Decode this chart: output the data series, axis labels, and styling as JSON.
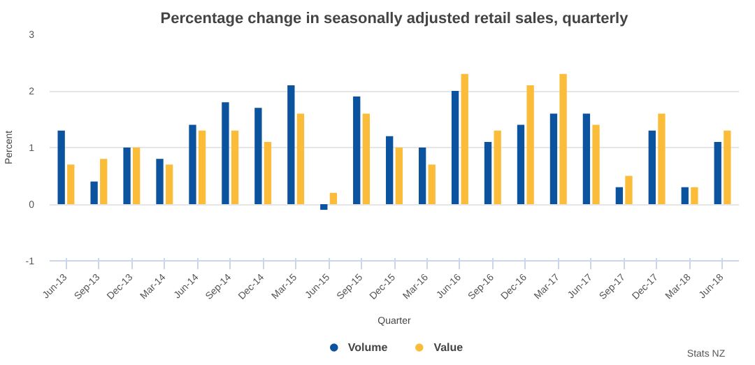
{
  "chart_data": {
    "type": "bar",
    "title": "Percentage change in seasonally adjusted retail sales, quarterly",
    "xlabel": "Quarter",
    "ylabel": "Percent",
    "categories": [
      "Jun-13",
      "Sep-13",
      "Dec-13",
      "Mar-14",
      "Jun-14",
      "Sep-14",
      "Dec-14",
      "Mar-15",
      "Jun-15",
      "Sep-15",
      "Dec-15",
      "Mar-16",
      "Jun-16",
      "Sep-16",
      "Dec-16",
      "Mar-17",
      "Jun-17",
      "Sep-17",
      "Dec-17",
      "Mar-18",
      "Jun-18"
    ],
    "series": [
      {
        "name": "Volume",
        "color": "#0b539f",
        "values": [
          1.3,
          0.4,
          1.0,
          0.8,
          1.4,
          1.8,
          1.7,
          2.1,
          -0.1,
          1.9,
          1.2,
          1.0,
          2.0,
          1.1,
          1.4,
          1.6,
          1.6,
          0.3,
          1.3,
          0.3,
          1.1
        ]
      },
      {
        "name": "Value",
        "color": "#fbbc3a",
        "values": [
          0.7,
          0.8,
          1.0,
          0.7,
          1.3,
          1.3,
          1.1,
          1.6,
          0.2,
          1.6,
          1.0,
          0.7,
          2.3,
          1.3,
          2.1,
          2.3,
          1.4,
          0.5,
          1.6,
          0.3,
          1.3
        ]
      }
    ],
    "ylim": [
      -1,
      3
    ],
    "yticks": [
      -1,
      0,
      1,
      2,
      3
    ],
    "grid": "y",
    "legend": "bottom",
    "annotations": [
      "Stats NZ"
    ]
  }
}
